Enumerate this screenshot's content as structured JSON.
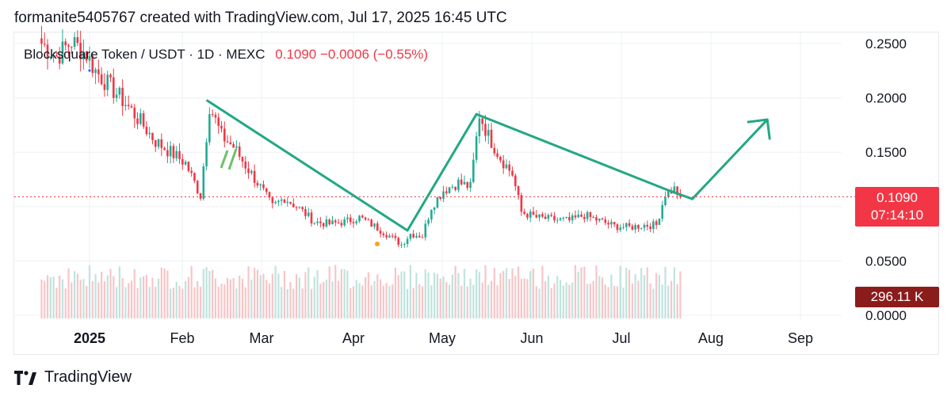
{
  "header": {
    "attribution": "formanite5405767 created with TradingView.com, Jul 17, 2025 16:45 UTC"
  },
  "legend": {
    "symbol": "Blocksquare Token / USDT · 1D · MEXC",
    "price_change": "0.1090 −0.0006 (−0.55%)"
  },
  "price_tag": {
    "price": "0.1090",
    "countdown": "07:14:10"
  },
  "volume_tag": {
    "value": "296.11 K"
  },
  "footer": {
    "brand": "TradingView"
  },
  "colors": {
    "up": "#22ab94",
    "down": "#f23645",
    "drawing": "#22a884",
    "volume_up": "#bfe3dd",
    "volume_down": "#f7c5c8",
    "grid": "#eef0f3",
    "axis_text": "#131722"
  },
  "chart_data": {
    "type": "candlestick",
    "y_ticks": [
      "0.2500",
      "0.2000",
      "0.1500",
      "0.0500",
      "0.0000"
    ],
    "x_ticks": [
      "2025",
      "Feb",
      "Mar",
      "Apr",
      "May",
      "Jun",
      "Jul",
      "Aug",
      "Sep"
    ],
    "ylim": [
      0,
      0.26
    ],
    "last_price": 0.109,
    "close_series": [
      {
        "date": "2024-12-16",
        "close": 0.25
      },
      {
        "date": "2024-12-21",
        "close": 0.238
      },
      {
        "date": "2024-12-26",
        "close": 0.252
      },
      {
        "date": "2024-12-31",
        "close": 0.24
      },
      {
        "date": "2025-01-03",
        "close": 0.225
      },
      {
        "date": "2025-01-08",
        "close": 0.21
      },
      {
        "date": "2025-01-13",
        "close": 0.195
      },
      {
        "date": "2025-01-18",
        "close": 0.178
      },
      {
        "date": "2025-01-23",
        "close": 0.16
      },
      {
        "date": "2025-01-28",
        "close": 0.15
      },
      {
        "date": "2025-02-02",
        "close": 0.14
      },
      {
        "date": "2025-02-05",
        "close": 0.122
      },
      {
        "date": "2025-02-07",
        "close": 0.11
      },
      {
        "date": "2025-02-10",
        "close": 0.193
      },
      {
        "date": "2025-02-14",
        "close": 0.165
      },
      {
        "date": "2025-02-18",
        "close": 0.155
      },
      {
        "date": "2025-02-22",
        "close": 0.138
      },
      {
        "date": "2025-02-26",
        "close": 0.122
      },
      {
        "date": "2025-03-03",
        "close": 0.1
      },
      {
        "date": "2025-03-07",
        "close": 0.108
      },
      {
        "date": "2025-03-12",
        "close": 0.098
      },
      {
        "date": "2025-03-17",
        "close": 0.086
      },
      {
        "date": "2025-03-22",
        "close": 0.084
      },
      {
        "date": "2025-03-27",
        "close": 0.086
      },
      {
        "date": "2025-04-01",
        "close": 0.09
      },
      {
        "date": "2025-04-06",
        "close": 0.082
      },
      {
        "date": "2025-04-11",
        "close": 0.073
      },
      {
        "date": "2025-04-15",
        "close": 0.065
      },
      {
        "date": "2025-04-18",
        "close": 0.075
      },
      {
        "date": "2025-04-22",
        "close": 0.073
      },
      {
        "date": "2025-04-25",
        "close": 0.1
      },
      {
        "date": "2025-04-29",
        "close": 0.115
      },
      {
        "date": "2025-05-04",
        "close": 0.122
      },
      {
        "date": "2025-05-08",
        "close": 0.118
      },
      {
        "date": "2025-05-11",
        "close": 0.185
      },
      {
        "date": "2025-05-14",
        "close": 0.165
      },
      {
        "date": "2025-05-18",
        "close": 0.145
      },
      {
        "date": "2025-05-22",
        "close": 0.13
      },
      {
        "date": "2025-05-25",
        "close": 0.095
      },
      {
        "date": "2025-05-30",
        "close": 0.09
      },
      {
        "date": "2025-06-05",
        "close": 0.088
      },
      {
        "date": "2025-06-10",
        "close": 0.087
      },
      {
        "date": "2025-06-15",
        "close": 0.092
      },
      {
        "date": "2025-06-20",
        "close": 0.087
      },
      {
        "date": "2025-06-25",
        "close": 0.082
      },
      {
        "date": "2025-06-30",
        "close": 0.081
      },
      {
        "date": "2025-07-05",
        "close": 0.083
      },
      {
        "date": "2025-07-09",
        "close": 0.083
      },
      {
        "date": "2025-07-12",
        "close": 0.112
      },
      {
        "date": "2025-07-15",
        "close": 0.116
      },
      {
        "date": "2025-07-17",
        "close": 0.109
      }
    ],
    "drawings": {
      "trend_polyline": [
        {
          "date": "2025-02-09",
          "price": 0.198
        },
        {
          "date": "2025-04-17",
          "price": 0.078
        },
        {
          "date": "2025-05-10",
          "price": 0.185
        },
        {
          "date": "2025-07-13",
          "price": 0.115
        },
        {
          "date": "2025-07-21",
          "price": 0.107
        }
      ],
      "projection_arrow": [
        {
          "date": "2025-07-21",
          "price": 0.107
        },
        {
          "date": "2025-08-15",
          "price": 0.18
        }
      ]
    }
  }
}
